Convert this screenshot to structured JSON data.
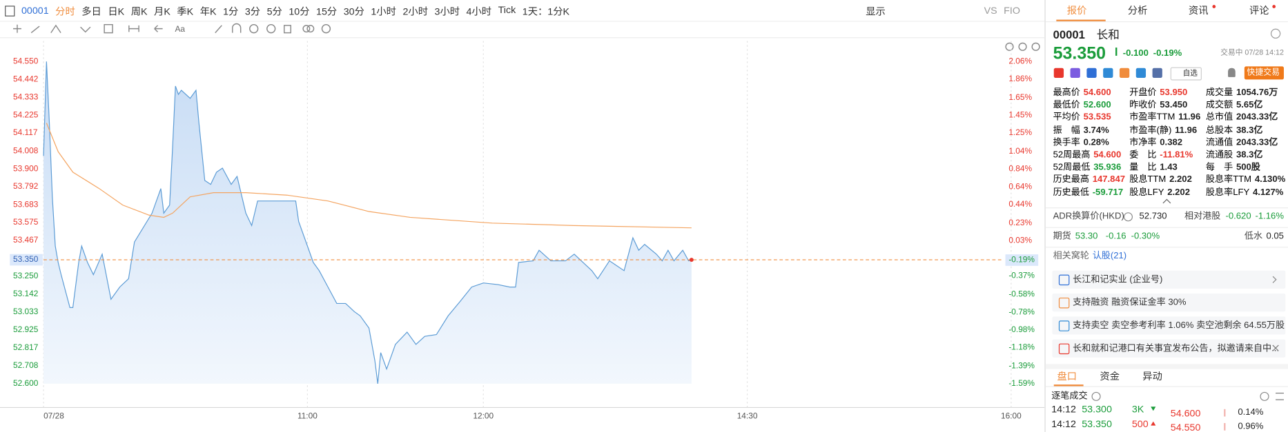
{
  "toolbar": {
    "code": "00001",
    "periods": [
      "分时",
      "多日",
      "日K",
      "周K",
      "月K",
      "季K",
      "年K",
      "1分",
      "3分",
      "5分",
      "10分",
      "15分",
      "30分",
      "1小时",
      "2小时",
      "3小时",
      "4小时",
      "Tick"
    ],
    "active": 0,
    "interval": "1天：1分K",
    "display": "显示",
    "vs": "VS",
    "fio": "FIO",
    "text_tool": "Aa"
  },
  "chart_data": {
    "type": "line",
    "xlim": [
      0,
      330
    ],
    "xticks": [
      {
        "value": 0,
        "label": "07/28"
      },
      {
        "value": 90,
        "label": "11:00"
      },
      {
        "value": 150,
        "label": "12:00"
      },
      {
        "value": 240,
        "label": "14:30"
      },
      {
        "value": 330,
        "label": "16:00"
      }
    ],
    "ylim": [
      52.6,
      54.55
    ],
    "yticks": [
      {
        "value": 54.55,
        "label": "54.550"
      },
      54.442,
      54.333,
      54.225,
      54.117,
      54.008,
      {
        "value": 53.9,
        "label": "53.900"
      },
      53.792,
      53.683,
      53.575,
      53.467,
      {
        "value": 53.25,
        "label": "53.250"
      },
      53.142,
      53.033,
      52.925,
      52.817,
      52.708,
      {
        "value": 52.6,
        "label": "52.600"
      }
    ],
    "y2lim": [
      -1.59,
      2.06
    ],
    "y2ticks": [
      {
        "value": 2.06,
        "label": "2.06%"
      },
      {
        "value": 1.86,
        "label": "1.86%"
      },
      {
        "value": 1.65,
        "label": "1.65%"
      },
      {
        "value": 1.45,
        "label": "1.45%"
      },
      {
        "value": 1.25,
        "label": "1.25%"
      },
      {
        "value": 1.04,
        "label": "1.04%"
      },
      {
        "value": 0.84,
        "label": "0.84%"
      },
      {
        "value": 0.64,
        "label": "0.64%"
      },
      {
        "value": 0.44,
        "label": "0.44%"
      },
      {
        "value": 0.23,
        "label": "0.23%"
      },
      {
        "value": 0.03,
        "label": "0.03%"
      },
      {
        "value": -0.37,
        "label": "-0.37%"
      },
      {
        "value": -0.58,
        "label": "-0.58%"
      },
      {
        "value": -0.78,
        "label": "-0.78%"
      },
      {
        "value": -0.98,
        "label": "-0.98%"
      },
      {
        "value": -1.18,
        "label": "-1.18%"
      },
      {
        "value": -1.39,
        "label": "-1.39%"
      },
      {
        "value": -1.59,
        "label": "-1.59%"
      }
    ],
    "grid": "x",
    "up_color": "#e8372d",
    "down_color": "#1a9c3a",
    "series": [
      {
        "color": "#5b9bd5",
        "fill": true,
        "x": [
          0,
          1,
          2,
          3,
          4,
          5,
          6,
          9,
          10,
          12,
          13,
          15,
          17,
          20,
          23,
          26,
          29,
          31,
          37,
          40,
          41,
          43,
          44,
          45,
          46,
          47,
          50,
          52,
          53,
          55,
          57,
          59,
          61,
          64,
          66,
          69,
          71,
          73,
          78,
          86,
          87,
          90,
          92,
          94,
          97,
          100,
          103,
          106,
          108,
          111,
          113,
          114,
          115,
          117,
          120,
          124,
          127,
          130,
          134,
          138,
          142,
          146,
          150,
          155,
          159,
          161,
          162,
          167,
          169,
          173,
          178,
          181,
          187,
          189,
          193,
          198,
          201,
          203,
          205,
          209,
          211,
          213,
          215,
          218,
          220,
          221
        ],
        "values": [
          53.979,
          54.55,
          54.178,
          53.731,
          53.433,
          53.334,
          53.26,
          53.061,
          53.061,
          53.334,
          53.433,
          53.334,
          53.26,
          53.384,
          53.111,
          53.185,
          53.235,
          53.458,
          53.632,
          53.781,
          53.632,
          53.681,
          54.029,
          54.401,
          54.351,
          54.376,
          54.327,
          54.376,
          54.178,
          53.83,
          53.806,
          53.88,
          53.905,
          53.806,
          53.855,
          53.632,
          53.557,
          53.706,
          53.706,
          53.706,
          53.582,
          53.433,
          53.334,
          53.284,
          53.185,
          53.086,
          53.086,
          53.036,
          53.011,
          52.937,
          52.739,
          52.6,
          52.788,
          52.689,
          52.838,
          52.912,
          52.838,
          52.887,
          52.897,
          53.011,
          53.096,
          53.185,
          53.21,
          53.2,
          53.185,
          53.185,
          53.334,
          53.344,
          53.408,
          53.344,
          53.344,
          53.384,
          53.284,
          53.235,
          53.344,
          53.284,
          53.483,
          53.408,
          53.443,
          53.384,
          53.344,
          53.408,
          53.344,
          53.408,
          53.344,
          53.35
        ]
      },
      {
        "color": "#f4a460",
        "fill": false,
        "x": [
          1,
          5,
          10,
          19,
          27,
          36,
          41,
          44,
          50,
          58,
          69,
          83,
          97,
          111,
          125,
          153,
          181,
          221
        ],
        "values": [
          54.178,
          54.004,
          53.88,
          53.781,
          53.681,
          53.62,
          53.607,
          53.632,
          53.731,
          53.756,
          53.756,
          53.741,
          53.706,
          53.642,
          53.607,
          53.572,
          53.557,
          53.543
        ]
      }
    ],
    "last_price": {
      "value": 53.35,
      "label": "53.350",
      "pct": -0.19,
      "pct_label": "-0.19%",
      "color": "#f08c3c"
    }
  },
  "panel": {
    "tabs": [
      "报价",
      "分析",
      "资讯",
      "评论"
    ],
    "active": 0,
    "stock": {
      "code": "00001",
      "name": "长和",
      "price": "53.350",
      "change": "-0.100",
      "change_pct": "-0.19%",
      "status": "交易中 07/28 14:12",
      "watch": "自选",
      "trade": "快捷交易",
      "color": "#1a9c3a"
    },
    "quote": [
      [
        {
          "label": "最高价",
          "value": "54.600",
          "color": "#e8372d"
        },
        {
          "label": "开盘价",
          "value": "53.950",
          "color": "#e8372d"
        },
        {
          "label": "成交量",
          "value": "1054.76万",
          "color": "#222"
        }
      ],
      [
        {
          "label": "最低价",
          "value": "52.600",
          "color": "#1a9c3a"
        },
        {
          "label": "昨收价",
          "value": "53.450",
          "color": "#222"
        },
        {
          "label": "成交额",
          "value": "5.65亿",
          "color": "#222"
        }
      ],
      [
        {
          "label": "平均价",
          "value": "53.535",
          "color": "#e8372d"
        },
        {
          "label": "市盈率TTM",
          "value": "11.96",
          "color": "#222"
        },
        {
          "label": "总市值",
          "value": "2043.33亿",
          "color": "#222"
        }
      ],
      [
        {
          "label": "振　幅",
          "value": "3.74%",
          "color": "#222"
        },
        {
          "label": "市盈率(静)",
          "value": "11.96",
          "color": "#222"
        },
        {
          "label": "总股本",
          "value": "38.3亿",
          "color": "#222"
        }
      ],
      [
        {
          "label": "换手率",
          "value": "0.28%",
          "color": "#222"
        },
        {
          "label": "市净率",
          "value": "0.382",
          "color": "#222"
        },
        {
          "label": "流通值",
          "value": "2043.33亿",
          "color": "#222"
        }
      ],
      [
        {
          "label": "52周最高",
          "value": "54.600",
          "color": "#e8372d"
        },
        {
          "label": "委　比",
          "value": "-11.81%",
          "color": "#e8372d"
        },
        {
          "label": "流通股",
          "value": "38.3亿",
          "color": "#222"
        }
      ],
      [
        {
          "label": "52周最低",
          "value": "35.936",
          "color": "#1a9c3a"
        },
        {
          "label": "量　比",
          "value": "1.43",
          "color": "#222"
        },
        {
          "label": "每　手",
          "value": "500股",
          "color": "#222"
        }
      ],
      [
        {
          "label": "历史最高",
          "value": "147.847",
          "color": "#e8372d"
        },
        {
          "label": "股息TTM",
          "value": "2.202",
          "color": "#222"
        },
        {
          "label": "股息率TTM",
          "value": "4.130%",
          "color": "#222"
        }
      ],
      [
        {
          "label": "历史最低",
          "value": "-59.717",
          "color": "#1a9c3a"
        },
        {
          "label": "股息LFY",
          "value": "2.202",
          "color": "#222"
        },
        {
          "label": "股息率LFY",
          "value": "4.127%",
          "color": "#222"
        }
      ]
    ],
    "adr": {
      "label": "ADR换算价(HKD)",
      "value": "52.730",
      "rel_label": "相对港股",
      "rel_change": "-0.620",
      "rel_pct": "-1.16%",
      "color": "#1a9c3a"
    },
    "futures": {
      "label": "期货",
      "price": "53.30",
      "change": "-0.16",
      "pct": "-0.30%",
      "basis_label": "低水",
      "basis": "0.05",
      "color": "#1a9c3a"
    },
    "warrants": {
      "label": "相关窝轮",
      "link": "认股(21)"
    },
    "notices": [
      "长江和记实业 (企业号)",
      "支持融资 融资保证金率 30%",
      "支持卖空 卖空参考利率 1.06% 卖空池剩余 64.55万股",
      "长和就和记港口有关事宜发布公告，拟邀请来自中..."
    ],
    "bottom_tabs": [
      "盘口",
      "资金",
      "异动"
    ],
    "trades": {
      "title": "逐笔成交",
      "rows": [
        {
          "time": "14:12",
          "price": "53.300",
          "volume": "3K",
          "color": "#1a9c3a"
        },
        {
          "time": "14:12",
          "price": "53.350",
          "volume": "500",
          "color": "#e8372d"
        }
      ]
    },
    "order_book": [
      {
        "price": "54.600",
        "pct": "0.14%"
      },
      {
        "price": "54.550",
        "pct": "0.96%"
      }
    ]
  }
}
